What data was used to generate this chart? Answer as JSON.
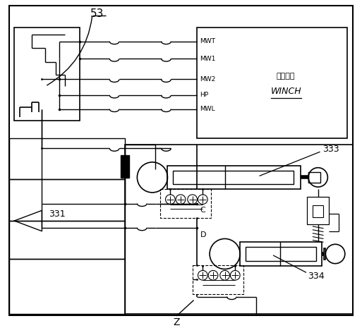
{
  "bg_color": "#ffffff",
  "line_color": "#000000",
  "fig_width": 5.13,
  "fig_height": 4.65,
  "dpi": 100,
  "label_53": "53",
  "label_331": "331",
  "label_333": "333",
  "label_334": "334",
  "label_Z": "Z",
  "label_C": "C",
  "label_D": "D",
  "winch_label_cn": "绞车系统",
  "winch_label_en": "WINCH",
  "winch_lines": [
    "MWT",
    "MW1",
    "MW2",
    "HP",
    "MWL"
  ]
}
